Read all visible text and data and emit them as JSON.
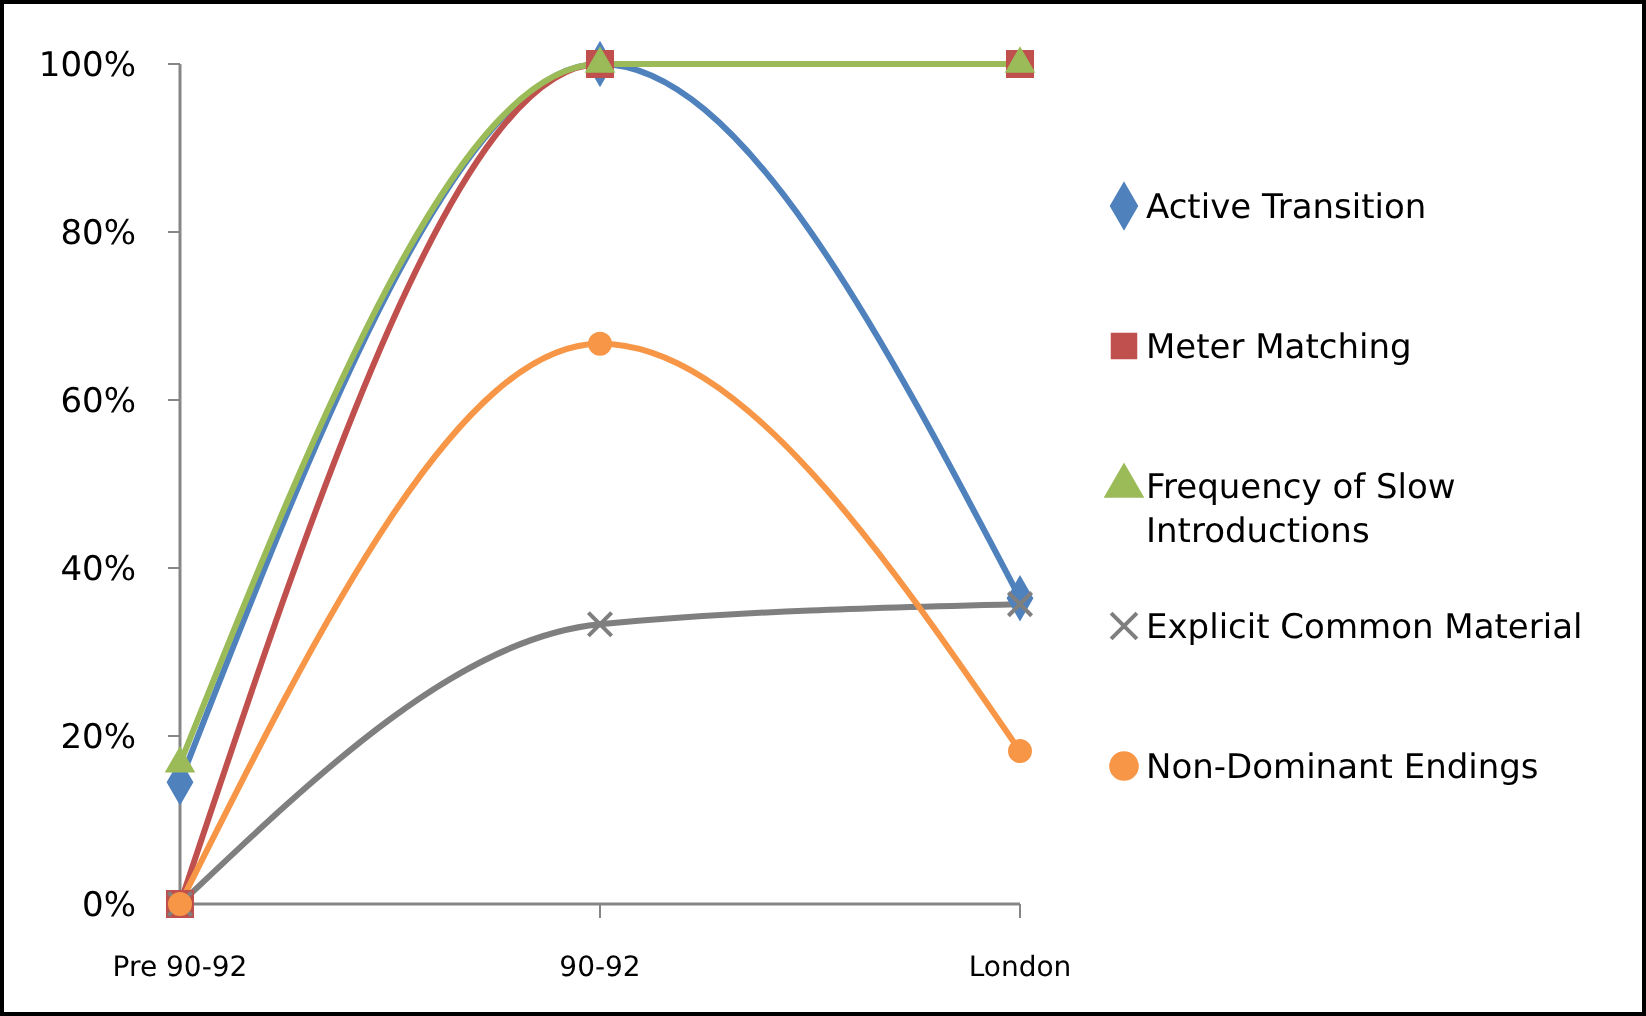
{
  "chart_data": {
    "type": "line",
    "categories": [
      "Pre 90-92",
      "90-92",
      "London"
    ],
    "ylim": [
      0,
      100
    ],
    "yticks": [
      {
        "value": 0,
        "label": "0%"
      },
      {
        "value": 20,
        "label": "20%"
      },
      {
        "value": 40,
        "label": "40%"
      },
      {
        "value": 60,
        "label": "60%"
      },
      {
        "value": 80,
        "label": "80%"
      },
      {
        "value": 100,
        "label": "100%"
      }
    ],
    "grid": false,
    "legend": "right",
    "line_style": "solid",
    "series": [
      {
        "name": "Active Transition",
        "color": "#4f81bd",
        "marker": "diamond",
        "values": [
          14.5,
          100,
          36.4
        ]
      },
      {
        "name": "Meter Matching",
        "color": "#c0504d",
        "marker": "square",
        "values": [
          0,
          100,
          100
        ]
      },
      {
        "name": "Frequency of Slow Introductions",
        "color": "#9bbb59",
        "marker": "triangle",
        "values": [
          16.7,
          100,
          100
        ]
      },
      {
        "name": "Explicit Common Material",
        "color": "#7f7f7f",
        "marker": "cross",
        "values": [
          0,
          33.3,
          35.7
        ]
      },
      {
        "name": "Non-Dominant Endings",
        "color": "#f79646",
        "marker": "circle",
        "values": [
          0,
          66.7,
          18.2
        ]
      }
    ]
  }
}
